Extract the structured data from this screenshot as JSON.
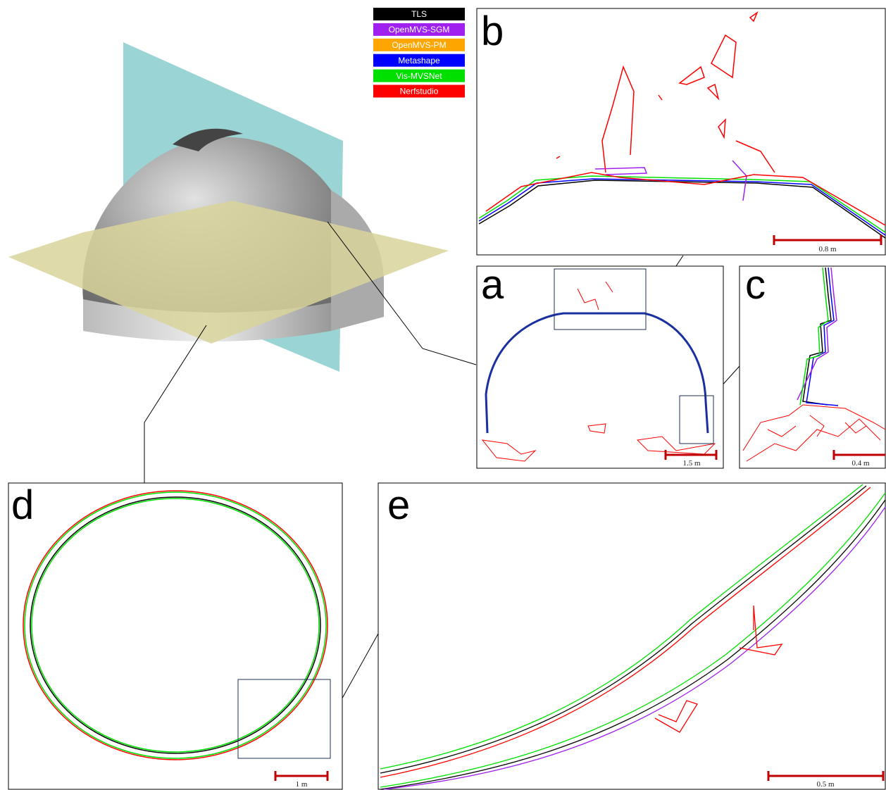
{
  "legend": {
    "items": [
      {
        "label": "TLS",
        "color": "#000000"
      },
      {
        "label": "OpenMVS-SGM",
        "color": "#a020f0"
      },
      {
        "label": "OpenMVS-PM",
        "color": "#ffa500"
      },
      {
        "label": "Metashape",
        "color": "#0000ff"
      },
      {
        "label": "Vis-MVSNet",
        "color": "#00e000"
      },
      {
        "label": "Nerfstudio",
        "color": "#ff0000"
      }
    ]
  },
  "panels": [
    {
      "label": "b",
      "scale": "0.8 m"
    },
    {
      "label": "a",
      "scale": "1.5 m"
    },
    {
      "label": "c",
      "scale": "0.4 m"
    },
    {
      "label": "d",
      "scale": "1 m"
    },
    {
      "label": "e",
      "scale": "0.5 m"
    }
  ]
}
